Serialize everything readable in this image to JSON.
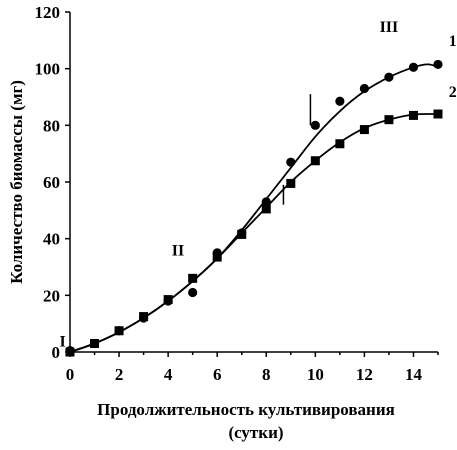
{
  "chart_data": {
    "type": "scatter",
    "xlabel_line1": "Продолжительность культивирования",
    "xlabel_line2": "(сутки)",
    "ylabel": "Количество биомассы (мг)",
    "xlim": [
      0,
      15
    ],
    "ylim": [
      0,
      120
    ],
    "x_ticks": [
      "0",
      "2",
      "4",
      "6",
      "8",
      "10",
      "12",
      "14"
    ],
    "y_ticks": [
      "0",
      "20",
      "40",
      "60",
      "80",
      "100",
      "120"
    ],
    "grid": false,
    "series": [
      {
        "name": "1",
        "marker": "circle",
        "points": [
          {
            "x": 0,
            "y": 0.5
          },
          {
            "x": 1,
            "y": 3
          },
          {
            "x": 2,
            "y": 7.5
          },
          {
            "x": 3,
            "y": 12
          },
          {
            "x": 4,
            "y": 18
          },
          {
            "x": 5,
            "y": 21
          },
          {
            "x": 6,
            "y": 35
          },
          {
            "x": 7,
            "y": 42
          },
          {
            "x": 8,
            "y": 53
          },
          {
            "x": 9,
            "y": 67
          },
          {
            "x": 10,
            "y": 80
          },
          {
            "x": 11,
            "y": 88.5
          },
          {
            "x": 12,
            "y": 93
          },
          {
            "x": 13,
            "y": 97
          },
          {
            "x": 14,
            "y": 100.5
          },
          {
            "x": 15,
            "y": 101.5
          }
        ],
        "fit": [
          {
            "x": 0,
            "y": 0
          },
          {
            "x": 1,
            "y": 3
          },
          {
            "x": 2,
            "y": 7
          },
          {
            "x": 3,
            "y": 12
          },
          {
            "x": 4,
            "y": 18
          },
          {
            "x": 5,
            "y": 25
          },
          {
            "x": 6,
            "y": 33
          },
          {
            "x": 7,
            "y": 43
          },
          {
            "x": 8,
            "y": 54
          },
          {
            "x": 9,
            "y": 65
          },
          {
            "x": 10,
            "y": 76
          },
          {
            "x": 11,
            "y": 85
          },
          {
            "x": 12,
            "y": 92
          },
          {
            "x": 13,
            "y": 97
          },
          {
            "x": 14,
            "y": 100.5
          },
          {
            "x": 14.6,
            "y": 101.5
          },
          {
            "x": 15,
            "y": 100.5
          }
        ]
      },
      {
        "name": "2",
        "marker": "square",
        "points": [
          {
            "x": 0,
            "y": 0
          },
          {
            "x": 1,
            "y": 3
          },
          {
            "x": 2,
            "y": 7.5
          },
          {
            "x": 3,
            "y": 12.5
          },
          {
            "x": 4,
            "y": 18.5
          },
          {
            "x": 5,
            "y": 26
          },
          {
            "x": 6,
            "y": 33.5
          },
          {
            "x": 7,
            "y": 41.5
          },
          {
            "x": 8,
            "y": 50.5
          },
          {
            "x": 9,
            "y": 59.5
          },
          {
            "x": 10,
            "y": 67.5
          },
          {
            "x": 11,
            "y": 73.5
          },
          {
            "x": 12,
            "y": 78.5
          },
          {
            "x": 13,
            "y": 82
          },
          {
            "x": 14,
            "y": 83.5
          },
          {
            "x": 15,
            "y": 84
          }
        ],
        "fit": [
          {
            "x": 0,
            "y": 0
          },
          {
            "x": 1,
            "y": 3
          },
          {
            "x": 2,
            "y": 7
          },
          {
            "x": 3,
            "y": 12
          },
          {
            "x": 4,
            "y": 18
          },
          {
            "x": 5,
            "y": 25
          },
          {
            "x": 6,
            "y": 33
          },
          {
            "x": 7,
            "y": 42
          },
          {
            "x": 8,
            "y": 51
          },
          {
            "x": 9,
            "y": 60
          },
          {
            "x": 10,
            "y": 67.5
          },
          {
            "x": 11,
            "y": 74
          },
          {
            "x": 12,
            "y": 79
          },
          {
            "x": 13,
            "y": 82
          },
          {
            "x": 14,
            "y": 83.8
          },
          {
            "x": 15,
            "y": 84
          }
        ]
      }
    ],
    "annotations": [
      {
        "text": "I",
        "x": -0.3,
        "y": 2
      },
      {
        "text": "II",
        "x": 4.4,
        "y": 34
      },
      {
        "text": "III",
        "x": 13.0,
        "y": 113
      },
      {
        "text": "1",
        "x": 15.6,
        "y": 108
      },
      {
        "text": "2",
        "x": 15.6,
        "y": 90
      }
    ],
    "markers_vertical": [
      {
        "x": 9.8,
        "y_from": 80,
        "y_to": 91
      },
      {
        "x": 8.7,
        "y_from": 52,
        "y_to": 59
      }
    ]
  }
}
